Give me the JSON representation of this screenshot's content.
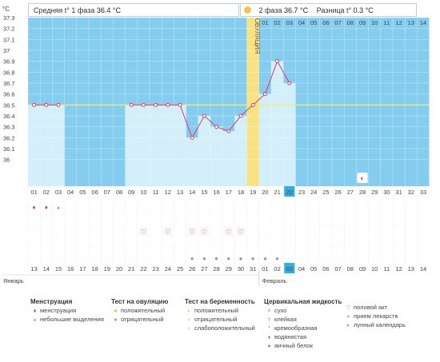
{
  "header": {
    "unit": "°C",
    "phase1_label": "Средняя t° 1 фаза",
    "phase1_value": "36.4 °C",
    "phase2_label": "2 фаза",
    "phase2_value": "36.7 °C",
    "diff_label": "Разница t°",
    "diff_value": "0.3 °C"
  },
  "ovulation_label": "ОВУЛЯЦИЯ",
  "chart_data": {
    "type": "line",
    "title": "",
    "ylabel": "°C",
    "ylim": [
      36,
      37.3
    ],
    "y_ticks": [
      "37.3",
      "37.2",
      "37.1",
      "37",
      "36.9",
      "36.8",
      "36.7",
      "36.6",
      "36.5",
      "36.4",
      "36.3",
      "36.2",
      "36.1",
      "36"
    ],
    "x_cycle_days": [
      "01",
      "02",
      "03",
      "04",
      "05",
      "06",
      "07",
      "08",
      "09",
      "10",
      "11",
      "12",
      "13",
      "14",
      "15",
      "16",
      "17",
      "18",
      "19",
      "20",
      "21",
      "22",
      "23",
      "24",
      "25",
      "26",
      "27",
      "28",
      "29",
      "30",
      "31",
      "32",
      "33"
    ],
    "top_days": [
      "01",
      "02",
      "03",
      "04",
      "05",
      "06",
      "07",
      "08",
      "09",
      "10",
      "11",
      "12",
      "13",
      "14"
    ],
    "highlighted_day": "22",
    "coverline": 36.5,
    "ovulation_day": 19,
    "series": [
      {
        "values": [
          36.5,
          36.5,
          36.5,
          null,
          null,
          null,
          null,
          null,
          36.5,
          36.5,
          36.5,
          36.5,
          36.5,
          36.2,
          36.4,
          36.3,
          36.26,
          36.4,
          36.5,
          36.6,
          36.9,
          36.7,
          null,
          null,
          null,
          null,
          null,
          null,
          null,
          null,
          null,
          null,
          null
        ]
      }
    ]
  },
  "calendar": {
    "dates": [
      "13",
      "14",
      "15",
      "16",
      "17",
      "18",
      "19",
      "20",
      "21",
      "22",
      "23",
      "24",
      "25",
      "26",
      "27",
      "28",
      "29",
      "30",
      "31",
      "01",
      "02",
      "03",
      "04",
      "05",
      "06",
      "07",
      "08",
      "09",
      "10",
      "11",
      "12",
      "13",
      "14"
    ],
    "red_indices": [
      1,
      2,
      9,
      10,
      16,
      17,
      23,
      24,
      30,
      31
    ],
    "highlighted_index": 21,
    "month_left": "Январь",
    "month_right": "Февраль"
  },
  "markers": {
    "menstruation_days": [
      1,
      2,
      3
    ],
    "heart_days": [
      10,
      12,
      14,
      15,
      17,
      18
    ],
    "moon_day": 28,
    "fluid_days": [
      14,
      15,
      16,
      17,
      18,
      19,
      20,
      21
    ]
  },
  "legend": {
    "menstruation": {
      "title": "Менструация",
      "items": [
        "менструация",
        "небольшие выделения"
      ]
    },
    "ovulation_test": {
      "title": "Тест на овуляцию",
      "items": [
        "положительный",
        "отрицательный"
      ]
    },
    "pregnancy_test": {
      "title": "Тест на беременность",
      "items": [
        "положительный",
        "отрицательный",
        "слабоположительный"
      ]
    },
    "cervical_fluid": {
      "title": "Цервикальная жидкость",
      "items": [
        "сухо",
        "клейкая",
        "кремообразная",
        "водянистая",
        "яичный белок"
      ]
    },
    "other": {
      "items": [
        "половой акт",
        "прием лекарств",
        "лунный календарь"
      ]
    }
  },
  "colors": {
    "bg": "#85cdee",
    "bar": "#d2effa",
    "ovulation": "#f7e382",
    "line": "#d83c6e",
    "red": "#d83c6e",
    "highlight": "#33aee3",
    "coverline": "#f3ef6e"
  }
}
